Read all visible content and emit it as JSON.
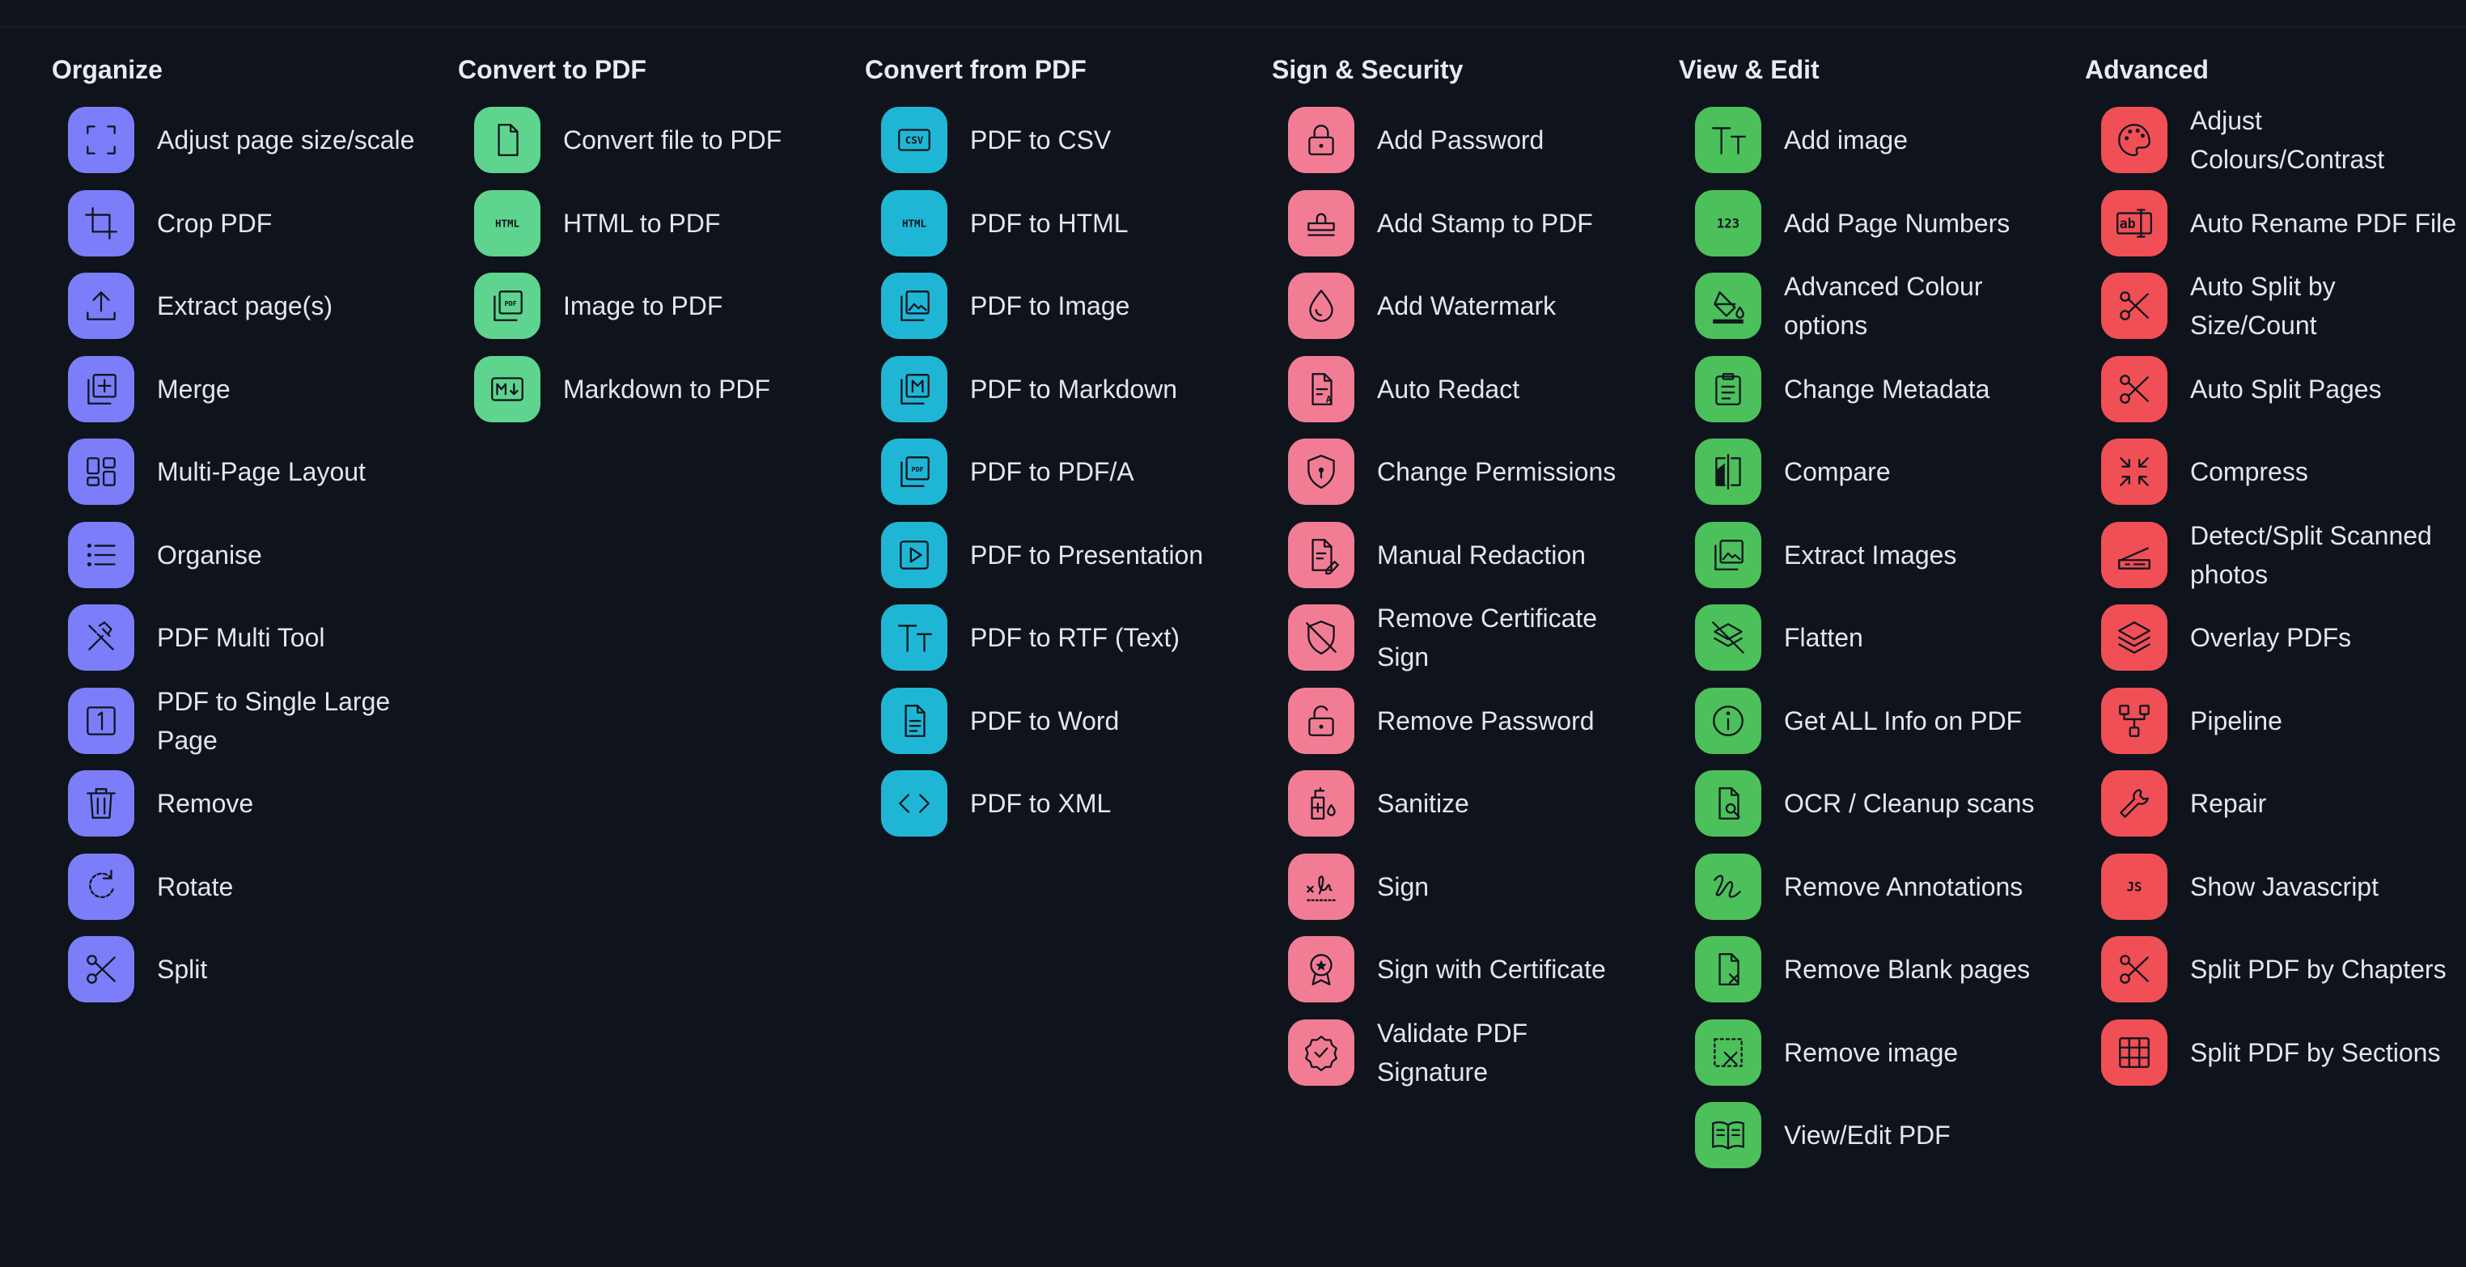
{
  "columns": [
    {
      "title": "Organize",
      "items": [
        {
          "label": "Adjust page size/scale",
          "icon": "resize-icon"
        },
        {
          "label": "Crop PDF",
          "icon": "crop-icon"
        },
        {
          "label": "Extract page(s)",
          "icon": "upload-icon"
        },
        {
          "label": "Merge",
          "icon": "library-add-icon"
        },
        {
          "label": "Multi-Page Layout",
          "icon": "dashboard-icon"
        },
        {
          "label": "Organise",
          "icon": "list-icon"
        },
        {
          "label": "PDF Multi Tool",
          "icon": "tools-icon"
        },
        {
          "label": "PDF to Single Large Page",
          "icon": "looks-one-icon"
        },
        {
          "label": "Remove",
          "icon": "trash-icon"
        },
        {
          "label": "Rotate",
          "icon": "rotate-icon"
        },
        {
          "label": "Split",
          "icon": "scissors-icon"
        }
      ]
    },
    {
      "title": "Convert to PDF",
      "items": [
        {
          "label": "Convert file to PDF",
          "icon": "file-icon"
        },
        {
          "label": "HTML to PDF",
          "icon": "html-icon"
        },
        {
          "label": "Image to PDF",
          "icon": "picture-as-pdf-icon"
        },
        {
          "label": "Markdown to PDF",
          "icon": "markdown-icon"
        }
      ]
    },
    {
      "title": "Convert from PDF",
      "items": [
        {
          "label": "PDF to CSV",
          "icon": "csv-icon"
        },
        {
          "label": "PDF to HTML",
          "icon": "html-icon"
        },
        {
          "label": "PDF to Image",
          "icon": "photo-library-icon"
        },
        {
          "label": "PDF to Markdown",
          "icon": "markdown-library-icon"
        },
        {
          "label": "PDF to PDF/A",
          "icon": "picture-as-pdf-icon"
        },
        {
          "label": "PDF to Presentation",
          "icon": "slideshow-icon"
        },
        {
          "label": "PDF to RTF (Text)",
          "icon": "text-fields-icon"
        },
        {
          "label": "PDF to Word",
          "icon": "description-icon"
        },
        {
          "label": "PDF to XML",
          "icon": "code-icon"
        }
      ]
    },
    {
      "title": "Sign & Security",
      "items": [
        {
          "label": "Add Password",
          "icon": "lock-icon"
        },
        {
          "label": "Add Stamp to PDF",
          "icon": "stamp-icon"
        },
        {
          "label": "Add Watermark",
          "icon": "water-drop-icon"
        },
        {
          "label": "Auto Redact",
          "icon": "document-redact-icon"
        },
        {
          "label": "Change Permissions",
          "icon": "shield-lock-icon"
        },
        {
          "label": "Manual Redaction",
          "icon": "edit-document-icon"
        },
        {
          "label": "Remove Certificate Sign",
          "icon": "shield-off-icon"
        },
        {
          "label": "Remove Password",
          "icon": "lock-open-icon"
        },
        {
          "label": "Sanitize",
          "icon": "sanitizer-icon"
        },
        {
          "label": "Sign",
          "icon": "signature-icon"
        },
        {
          "label": "Sign with Certificate",
          "icon": "badge-icon"
        },
        {
          "label": "Validate PDF Signature",
          "icon": "verified-icon"
        }
      ]
    },
    {
      "title": "View & Edit",
      "items": [
        {
          "label": "Add image",
          "icon": "text-fields-icon"
        },
        {
          "label": "Add Page Numbers",
          "icon": "numbers-icon"
        },
        {
          "label": "Advanced Colour options",
          "icon": "format-color-fill-icon"
        },
        {
          "label": "Change Metadata",
          "icon": "clipboard-icon"
        },
        {
          "label": "Compare",
          "icon": "compare-icon"
        },
        {
          "label": "Extract Images",
          "icon": "photo-library-icon"
        },
        {
          "label": "Flatten",
          "icon": "layers-off-icon"
        },
        {
          "label": "Get ALL Info on PDF",
          "icon": "info-icon"
        },
        {
          "label": "OCR / Cleanup scans",
          "icon": "document-search-icon"
        },
        {
          "label": "Remove Annotations",
          "icon": "gesture-icon"
        },
        {
          "label": "Remove Blank pages",
          "icon": "file-remove-icon"
        },
        {
          "label": "Remove image",
          "icon": "deselect-icon"
        },
        {
          "label": "View/Edit PDF",
          "icon": "book-icon"
        }
      ]
    },
    {
      "title": "Advanced",
      "items": [
        {
          "label": "Adjust Colours/Contrast",
          "icon": "palette-icon"
        },
        {
          "label": "Auto Rename PDF File",
          "icon": "text-select-icon"
        },
        {
          "label": "Auto Split by Size/Count",
          "icon": "content-cut-icon"
        },
        {
          "label": "Auto Split Pages",
          "icon": "content-cut-icon"
        },
        {
          "label": "Compress",
          "icon": "compress-icon"
        },
        {
          "label": "Detect/Split Scanned photos",
          "icon": "scanner-icon"
        },
        {
          "label": "Overlay PDFs",
          "icon": "layers-icon"
        },
        {
          "label": "Pipeline",
          "icon": "pipeline-icon"
        },
        {
          "label": "Repair",
          "icon": "wrench-icon"
        },
        {
          "label": "Show Javascript",
          "icon": "javascript-icon"
        },
        {
          "label": "Split PDF by Chapters",
          "icon": "content-cut-icon"
        },
        {
          "label": "Split PDF by Sections",
          "icon": "grid-icon"
        }
      ]
    }
  ],
  "colors": {
    "background": "#0f131b",
    "organize": "#7b7ef8",
    "convert_to_pdf": "#5fd48e",
    "convert_from_pdf": "#1fb6d6",
    "sign_security": "#f37c95",
    "view_edit": "#4cc05a",
    "advanced": "#ef4f55"
  }
}
